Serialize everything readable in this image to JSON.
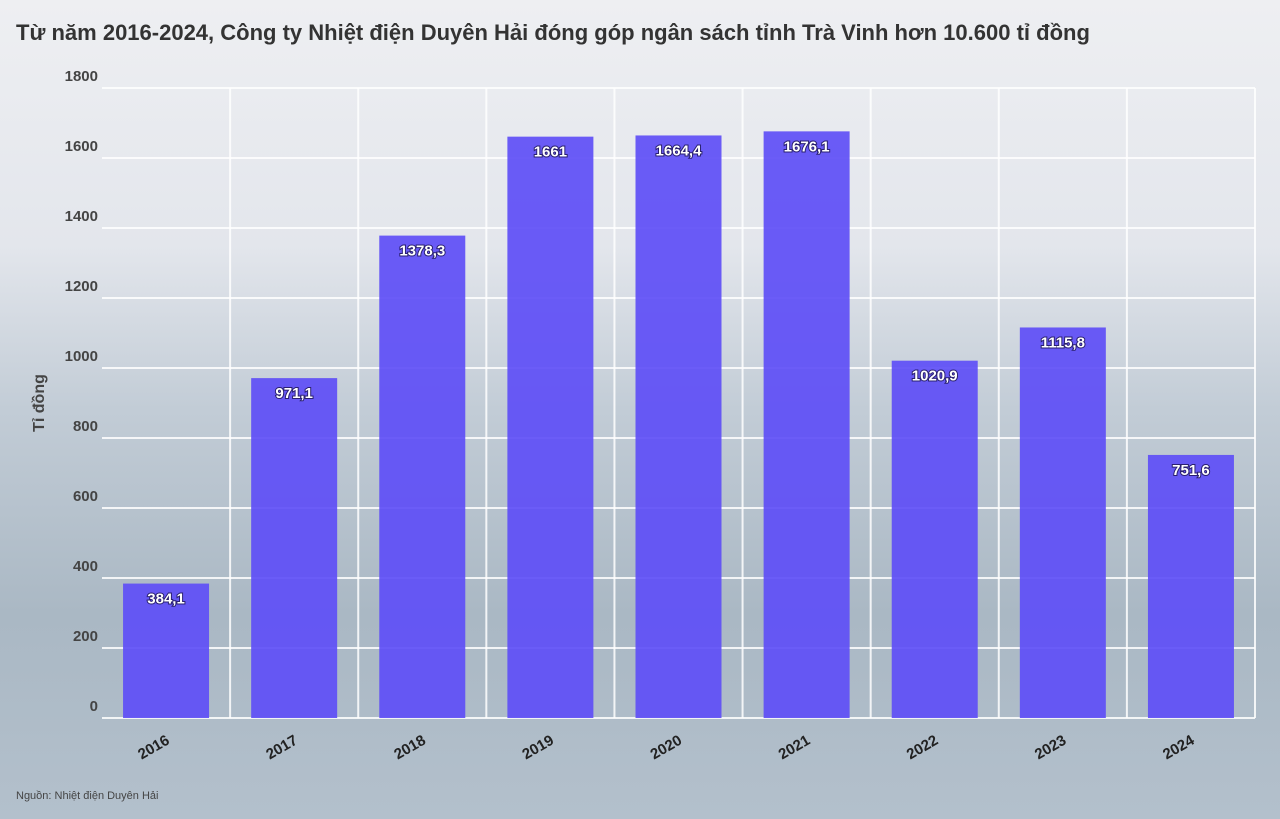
{
  "chart_data": {
    "type": "bar",
    "title": "Từ năm 2016-2024, Công ty Nhiệt điện Duyên Hải đóng góp ngân sách tỉnh Trà Vinh hơn 10.600 tỉ đồng",
    "y_label": "Tỉ đồng",
    "source": "Nguồn: Nhiệt điện Duyên Hải",
    "categories": [
      "2016",
      "2017",
      "2018",
      "2019",
      "2020",
      "2021",
      "2022",
      "2023",
      "2024"
    ],
    "values": [
      384.1,
      971.1,
      1378.3,
      1661,
      1664.4,
      1676.1,
      1020.9,
      1115.8,
      751.6
    ],
    "value_labels": [
      "384,1",
      "971,1",
      "1378,3",
      "1661",
      "1664,4",
      "1676,1",
      "1020,9",
      "1115,8",
      "751,6"
    ],
    "color": "#5e4ef6",
    "ylim": [
      0,
      1800
    ],
    "yticks": [
      0,
      200,
      400,
      600,
      800,
      1000,
      1200,
      1400,
      1600,
      1800
    ],
    "grid": true
  }
}
